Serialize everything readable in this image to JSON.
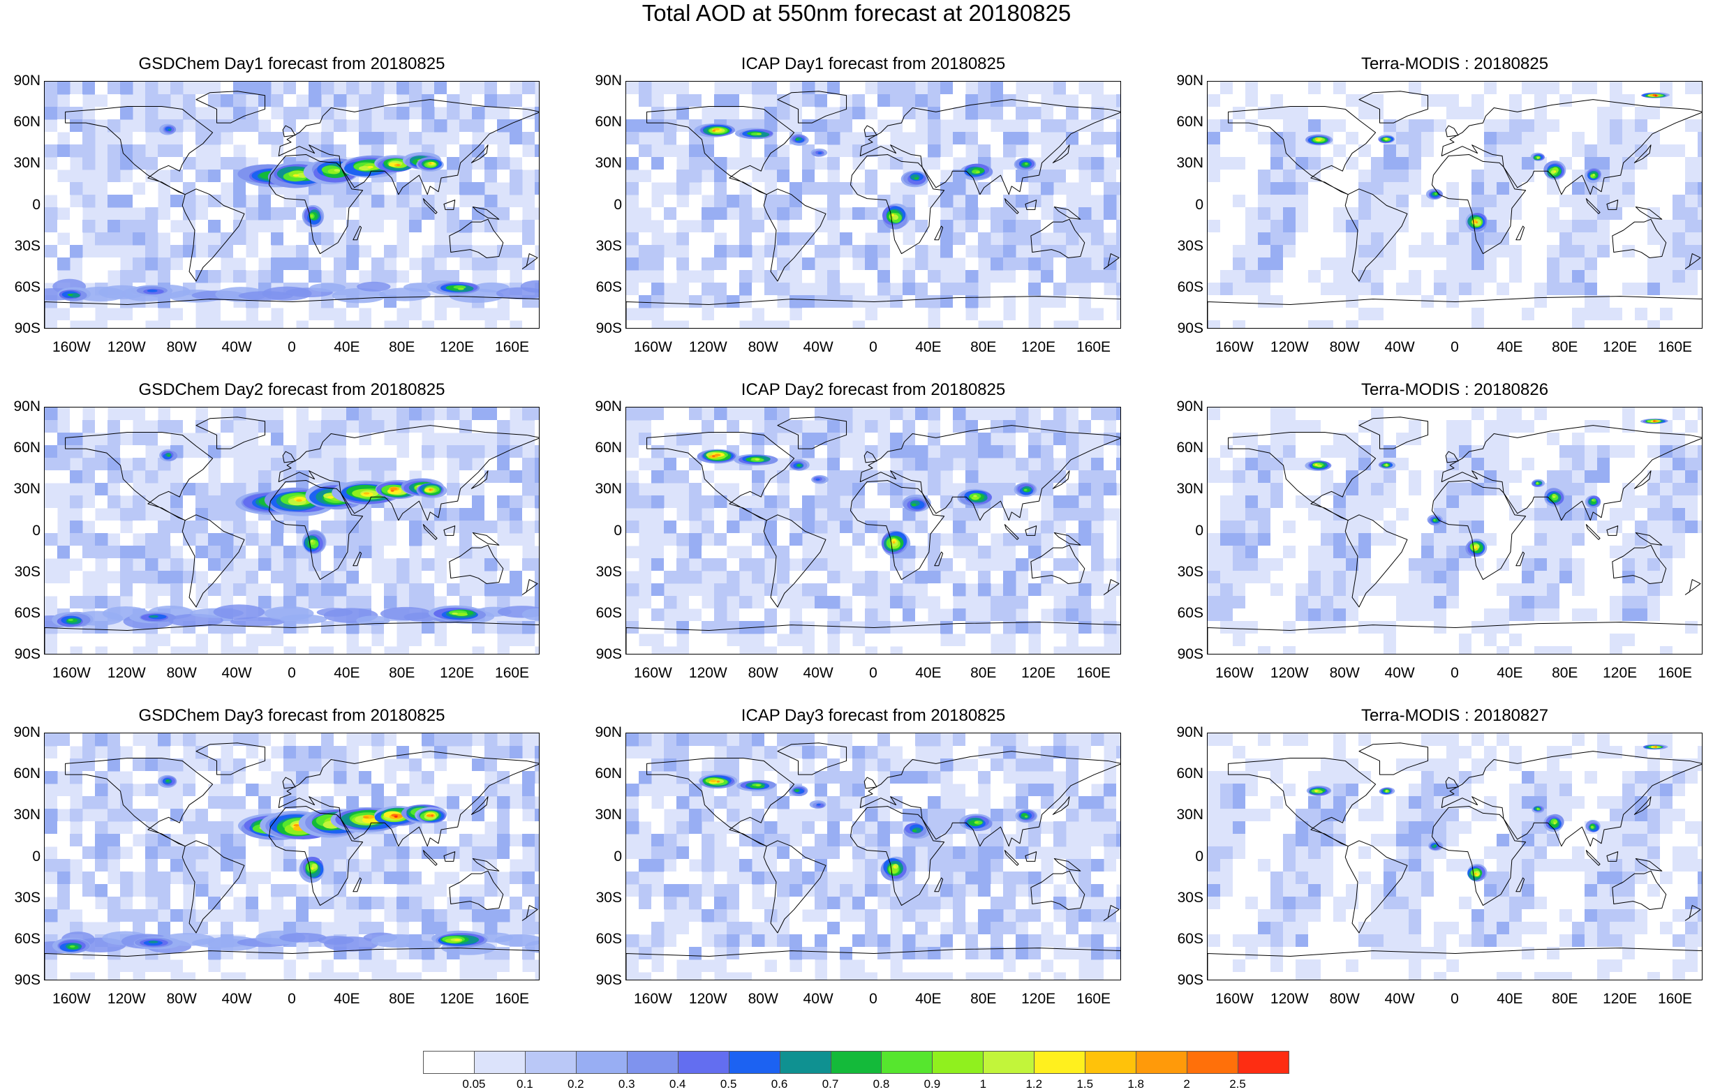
{
  "title": "Total AOD at 550nm forecast at 20180825",
  "lat_labels": [
    "90N",
    "60N",
    "30N",
    "0",
    "30S",
    "60S",
    "90S"
  ],
  "lon_labels": [
    "160W",
    "120W",
    "80W",
    "40W",
    "0",
    "40E",
    "80E",
    "120E",
    "160E"
  ],
  "panels": [
    {
      "title": "GSDChem Day1 forecast from 20180825",
      "type": "gsd",
      "intensity": 1.0
    },
    {
      "title": "ICAP Day1 forecast from 20180825",
      "type": "icap",
      "intensity": 1.0
    },
    {
      "title": "Terra-MODIS : 20180825",
      "type": "modis",
      "intensity": 1.0
    },
    {
      "title": "GSDChem Day2 forecast from 20180825",
      "type": "gsd",
      "intensity": 1.1
    },
    {
      "title": "ICAP Day2 forecast from 20180825",
      "type": "icap",
      "intensity": 1.05
    },
    {
      "title": "Terra-MODIS : 20180826",
      "type": "modis",
      "intensity": 0.95
    },
    {
      "title": "GSDChem Day3 forecast from 20180825",
      "type": "gsd",
      "intensity": 1.15
    },
    {
      "title": "ICAP Day3 forecast from 20180825",
      "type": "icap",
      "intensity": 1.0
    },
    {
      "title": "Terra-MODIS : 20180827",
      "type": "modis",
      "intensity": 0.9
    }
  ],
  "colorbar": {
    "colors": [
      "#ffffff",
      "#dce3fb",
      "#bac8f7",
      "#98aef3",
      "#7f93ee",
      "#636ef0",
      "#1c62f2",
      "#0f9191",
      "#14ba3a",
      "#56e62e",
      "#90f01e",
      "#c2f53a",
      "#fff01e",
      "#ffc20a",
      "#ff9a0a",
      "#ff700a",
      "#fe2d12"
    ],
    "labels": [
      "0.05",
      "0.1",
      "0.2",
      "0.3",
      "0.4",
      "0.5",
      "0.6",
      "0.7",
      "0.8",
      "0.9",
      "1",
      "1.2",
      "1.5",
      "1.8",
      "2",
      "2.5"
    ]
  }
}
